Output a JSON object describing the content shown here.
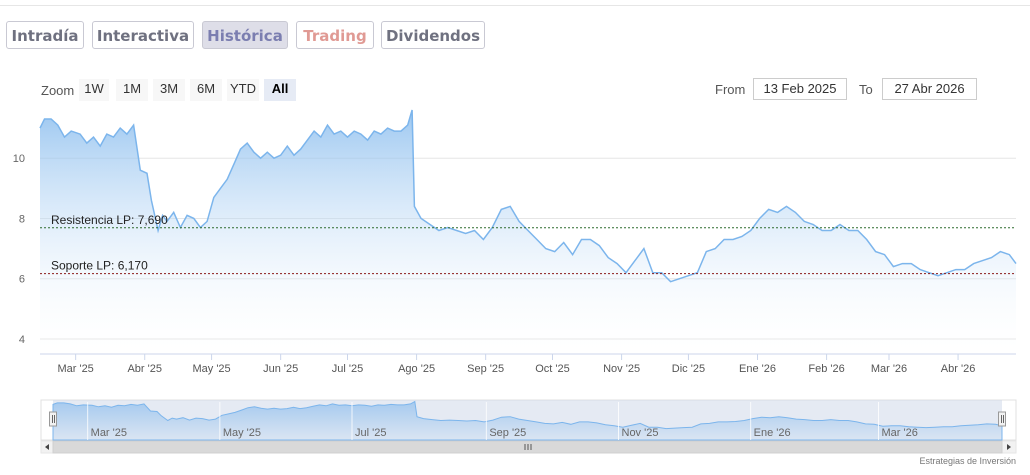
{
  "tabs": [
    {
      "label": "Intradía",
      "state": "normal"
    },
    {
      "label": "Interactiva",
      "state": "normal"
    },
    {
      "label": "Histórica",
      "state": "active"
    },
    {
      "label": "Trading",
      "state": "alert"
    },
    {
      "label": "Dividendos",
      "state": "normal"
    }
  ],
  "zoom": {
    "label": "Zoom",
    "buttons": [
      "1W",
      "1M",
      "3M",
      "6M",
      "YTD",
      "All"
    ],
    "selected": "All"
  },
  "range": {
    "from_label": "From",
    "from_value": "13 Feb 2025",
    "to_label": "To",
    "to_value": "27 Abr 2026"
  },
  "credit": "Estrategias de Inversión",
  "colors": {
    "line": "#7cb5ec",
    "fill_top": "#7cb5ec",
    "fill_bottom": "#ffffff",
    "resistance": "#2e6b2e",
    "support": "#8b1a1a",
    "tab_active_bg": "#dedee8",
    "tab_trading_text": "#e09a94",
    "navigator_mask": "#cfd8ea"
  },
  "chart_data": {
    "type": "area",
    "x_type": "date",
    "x_range": [
      "2025-02-13",
      "2026-04-27"
    ],
    "ylim": [
      3.5,
      11.5
    ],
    "yticks": [
      4,
      6,
      8,
      10
    ],
    "xticks": [
      {
        "date": "2025-03-01",
        "label": "Mar '25"
      },
      {
        "date": "2025-04-01",
        "label": "Abr '25"
      },
      {
        "date": "2025-05-01",
        "label": "May '25"
      },
      {
        "date": "2025-06-01",
        "label": "Jun '25"
      },
      {
        "date": "2025-07-01",
        "label": "Jul '25"
      },
      {
        "date": "2025-08-01",
        "label": "Ago '25"
      },
      {
        "date": "2025-09-01",
        "label": "Sep '25"
      },
      {
        "date": "2025-10-01",
        "label": "Oct '25"
      },
      {
        "date": "2025-11-01",
        "label": "Nov '25"
      },
      {
        "date": "2025-12-01",
        "label": "Dic '25"
      },
      {
        "date": "2026-01-01",
        "label": "Ene '26"
      },
      {
        "date": "2026-02-01",
        "label": "Feb '26"
      },
      {
        "date": "2026-03-01",
        "label": "Mar '26"
      },
      {
        "date": "2026-04-01",
        "label": "Abr '26"
      }
    ],
    "navigator_xticks": [
      {
        "date": "2025-03-01",
        "label": "Mar '25"
      },
      {
        "date": "2025-05-01",
        "label": "May '25"
      },
      {
        "date": "2025-07-01",
        "label": "Jul '25"
      },
      {
        "date": "2025-09-01",
        "label": "Sep '25"
      },
      {
        "date": "2025-11-01",
        "label": "Nov '25"
      },
      {
        "date": "2026-01-01",
        "label": "Ene '26"
      },
      {
        "date": "2026-03-01",
        "label": "Mar '26"
      }
    ],
    "grid": true,
    "reference_lines": [
      {
        "label": "Resistencia LP: 7,690",
        "value": 7.69
      },
      {
        "label": "Soporte LP: 6,170",
        "value": 6.17
      }
    ],
    "series": [
      {
        "x": [
          "2025-02-13",
          "2025-02-15",
          "2025-02-18",
          "2025-02-21",
          "2025-02-24",
          "2025-02-27",
          "2025-03-03",
          "2025-03-06",
          "2025-03-09",
          "2025-03-12",
          "2025-03-15",
          "2025-03-18",
          "2025-03-21",
          "2025-03-24",
          "2025-03-27",
          "2025-03-30",
          "2025-04-02",
          "2025-04-04",
          "2025-04-07",
          "2025-04-09",
          "2025-04-11",
          "2025-04-14",
          "2025-04-17",
          "2025-04-20",
          "2025-04-23",
          "2025-04-26",
          "2025-04-29",
          "2025-05-02",
          "2025-05-05",
          "2025-05-08",
          "2025-05-11",
          "2025-05-14",
          "2025-05-17",
          "2025-05-20",
          "2025-05-23",
          "2025-05-26",
          "2025-05-29",
          "2025-06-01",
          "2025-06-04",
          "2025-06-07",
          "2025-06-10",
          "2025-06-13",
          "2025-06-16",
          "2025-06-19",
          "2025-06-22",
          "2025-06-25",
          "2025-06-28",
          "2025-07-01",
          "2025-07-04",
          "2025-07-07",
          "2025-07-10",
          "2025-07-13",
          "2025-07-16",
          "2025-07-19",
          "2025-07-22",
          "2025-07-25",
          "2025-07-28",
          "2025-07-30",
          "2025-07-31",
          "2025-08-03",
          "2025-08-07",
          "2025-08-11",
          "2025-08-15",
          "2025-08-19",
          "2025-08-23",
          "2025-08-27",
          "2025-08-31",
          "2025-09-04",
          "2025-09-08",
          "2025-09-12",
          "2025-09-16",
          "2025-09-20",
          "2025-09-24",
          "2025-09-28",
          "2025-10-02",
          "2025-10-06",
          "2025-10-10",
          "2025-10-14",
          "2025-10-18",
          "2025-10-22",
          "2025-10-26",
          "2025-10-30",
          "2025-11-03",
          "2025-11-07",
          "2025-11-11",
          "2025-11-15",
          "2025-11-19",
          "2025-11-23",
          "2025-11-27",
          "2025-12-01",
          "2025-12-05",
          "2025-12-09",
          "2025-12-13",
          "2025-12-17",
          "2025-12-21",
          "2025-12-25",
          "2025-12-29",
          "2026-01-02",
          "2026-01-06",
          "2026-01-10",
          "2026-01-14",
          "2026-01-18",
          "2026-01-22",
          "2026-01-26",
          "2026-01-30",
          "2026-02-03",
          "2026-02-07",
          "2026-02-11",
          "2026-02-15",
          "2026-02-19",
          "2026-02-23",
          "2026-02-27",
          "2026-03-03",
          "2026-03-07",
          "2026-03-11",
          "2026-03-15",
          "2026-03-19",
          "2026-03-23",
          "2026-03-27",
          "2026-03-31",
          "2026-04-04",
          "2026-04-08",
          "2026-04-12",
          "2026-04-16",
          "2026-04-20",
          "2026-04-24",
          "2026-04-27"
        ],
        "y": [
          11.0,
          11.3,
          11.3,
          11.1,
          10.7,
          10.9,
          10.8,
          10.5,
          10.7,
          10.4,
          10.8,
          10.7,
          11.0,
          10.8,
          11.1,
          9.6,
          9.5,
          8.6,
          7.6,
          8.1,
          7.9,
          8.2,
          7.7,
          8.1,
          8.0,
          7.7,
          7.9,
          8.7,
          9.0,
          9.3,
          9.8,
          10.3,
          10.5,
          10.2,
          10.0,
          10.2,
          10.0,
          10.1,
          10.4,
          10.1,
          10.3,
          10.6,
          10.9,
          10.7,
          11.1,
          10.8,
          10.9,
          10.7,
          10.9,
          10.8,
          10.6,
          10.9,
          10.8,
          11.0,
          10.9,
          10.9,
          11.1,
          11.6,
          8.4,
          8.0,
          7.8,
          7.6,
          7.7,
          7.6,
          7.5,
          7.6,
          7.3,
          7.7,
          8.3,
          8.4,
          7.9,
          7.6,
          7.3,
          7.0,
          6.9,
          7.2,
          6.8,
          7.3,
          7.3,
          7.1,
          6.7,
          6.5,
          6.2,
          6.6,
          7.0,
          6.2,
          6.2,
          5.9,
          6.0,
          6.1,
          6.2,
          6.9,
          7.0,
          7.3,
          7.3,
          7.4,
          7.6,
          8.0,
          8.3,
          8.2,
          8.4,
          8.2,
          7.9,
          7.8,
          7.6,
          7.6,
          7.8,
          7.6,
          7.6,
          7.3,
          6.9,
          6.8,
          6.4,
          6.5,
          6.5,
          6.3,
          6.2,
          6.1,
          6.2,
          6.3,
          6.3,
          6.5,
          6.6,
          6.7,
          6.9,
          6.8,
          6.5
        ]
      }
    ]
  }
}
